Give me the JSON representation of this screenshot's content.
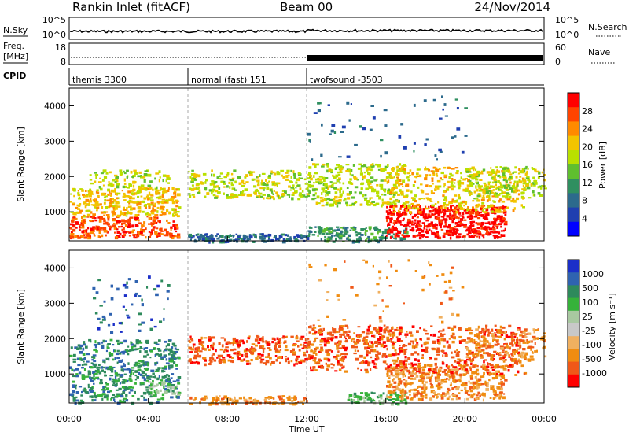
{
  "header": {
    "station": "Rankin Inlet (fitACF)",
    "beam": "Beam 00",
    "date": "24/Nov/2014"
  },
  "noise_panel": {
    "left_label": "N.Sky",
    "right_label": "N.Search",
    "left_ticks": [
      "10^5",
      "10^0"
    ],
    "right_ticks": [
      "10^5",
      "10^0"
    ]
  },
  "freq_panel": {
    "left_label_1": "Freq.",
    "left_label_2": "[MHz]",
    "right_label": "Nave",
    "left_ticks": [
      "18",
      "8"
    ],
    "right_ticks": [
      "60",
      "0"
    ]
  },
  "cpid": {
    "label": "CPID",
    "segments": [
      {
        "text": "themis 3300",
        "start_hour": 0
      },
      {
        "text": "normal (fast) 151",
        "start_hour": 6
      },
      {
        "text": "twofsound -3503",
        "start_hour": 12
      }
    ]
  },
  "chart_data": [
    {
      "type": "heatmap",
      "name": "Power",
      "ylabel": "Slant Range [km]",
      "yticks": [
        1000,
        2000,
        3000,
        4000
      ],
      "ylim": [
        180,
        4500
      ],
      "xlim": [
        0,
        24
      ],
      "colorbar": {
        "label": "Power [dB]",
        "ticks": [
          "28",
          "24",
          "20",
          "16",
          "12",
          "8",
          "4"
        ],
        "colors": [
          "#ff0000",
          "#ff4400",
          "#ff8a00",
          "#f2c400",
          "#b9e000",
          "#5fbf2e",
          "#2f8f60",
          "#2c6a8c",
          "#1f3fb0",
          "#0000ff"
        ]
      }
    },
    {
      "type": "heatmap",
      "name": "Velocity",
      "ylabel": "Slant Range [km]",
      "yticks": [
        1000,
        2000,
        3000,
        4000
      ],
      "ylim": [
        180,
        4500
      ],
      "xlim": [
        0,
        24
      ],
      "xticks": [
        "00:00",
        "04:00",
        "08:00",
        "12:00",
        "16:00",
        "20:00",
        "00:00"
      ],
      "xlabel": "Time UT",
      "colorbar": {
        "label": "Velocity [m s⁻¹]",
        "ticks": [
          "1000",
          "500",
          "100",
          "25",
          "-25",
          "-100",
          "-500",
          "-1000"
        ],
        "colors": [
          "#1b2fc8",
          "#2f63b0",
          "#2e8a5c",
          "#36b23a",
          "#a8c8a0",
          "#c8c8c8",
          "#f0b060",
          "#f08c10",
          "#f05818",
          "#ff0000"
        ]
      }
    }
  ]
}
